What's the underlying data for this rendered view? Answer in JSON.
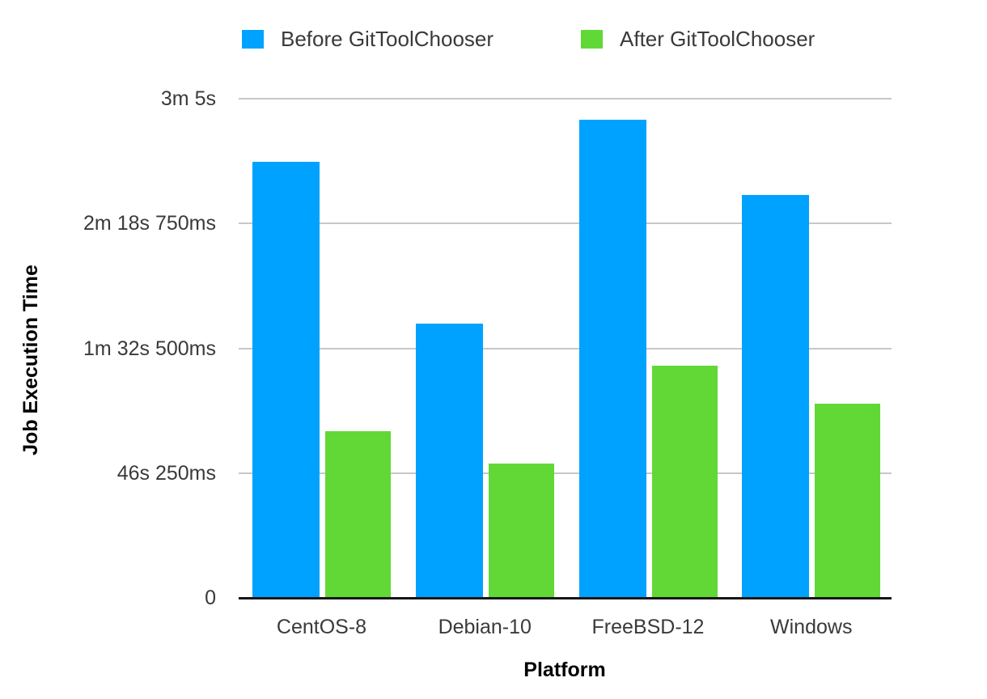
{
  "legend": {
    "items": [
      {
        "label": "Before GitToolChooser",
        "color": "#00a2ff"
      },
      {
        "label": "After GitToolChooser",
        "color": "#61d836"
      }
    ]
  },
  "chart_data": {
    "type": "bar",
    "title": "",
    "xlabel": "Platform",
    "ylabel": "Job Execution Time",
    "categories": [
      "CentOS-8",
      "Debian-10",
      "FreeBSD-12",
      "Windows"
    ],
    "series": [
      {
        "name": "Before GitToolChooser",
        "color": "#00a2ff",
        "values_seconds": [
          161.5,
          101.8,
          177.1,
          149.2
        ]
      },
      {
        "name": "After GitToolChooser",
        "color": "#61d836",
        "values_seconds": [
          61.9,
          49.9,
          86.2,
          72.1
        ]
      }
    ],
    "y_axis": {
      "min": 0,
      "max": 185,
      "ticks_seconds": [
        0,
        46.25,
        92.5,
        138.75,
        185
      ],
      "tick_labels": [
        "0",
        "46s 250ms",
        "1m 32s 500ms",
        "2m 18s 750ms",
        "3m 5s"
      ]
    },
    "grid": true,
    "legend_position": "top"
  },
  "colors": {
    "before_bar": "#00a2ff",
    "after_bar": "#61d836",
    "gridline": "#c7c7c7",
    "axis_line": "#161616",
    "tick_text": "#3a3a3a",
    "title_text": "#000000"
  }
}
